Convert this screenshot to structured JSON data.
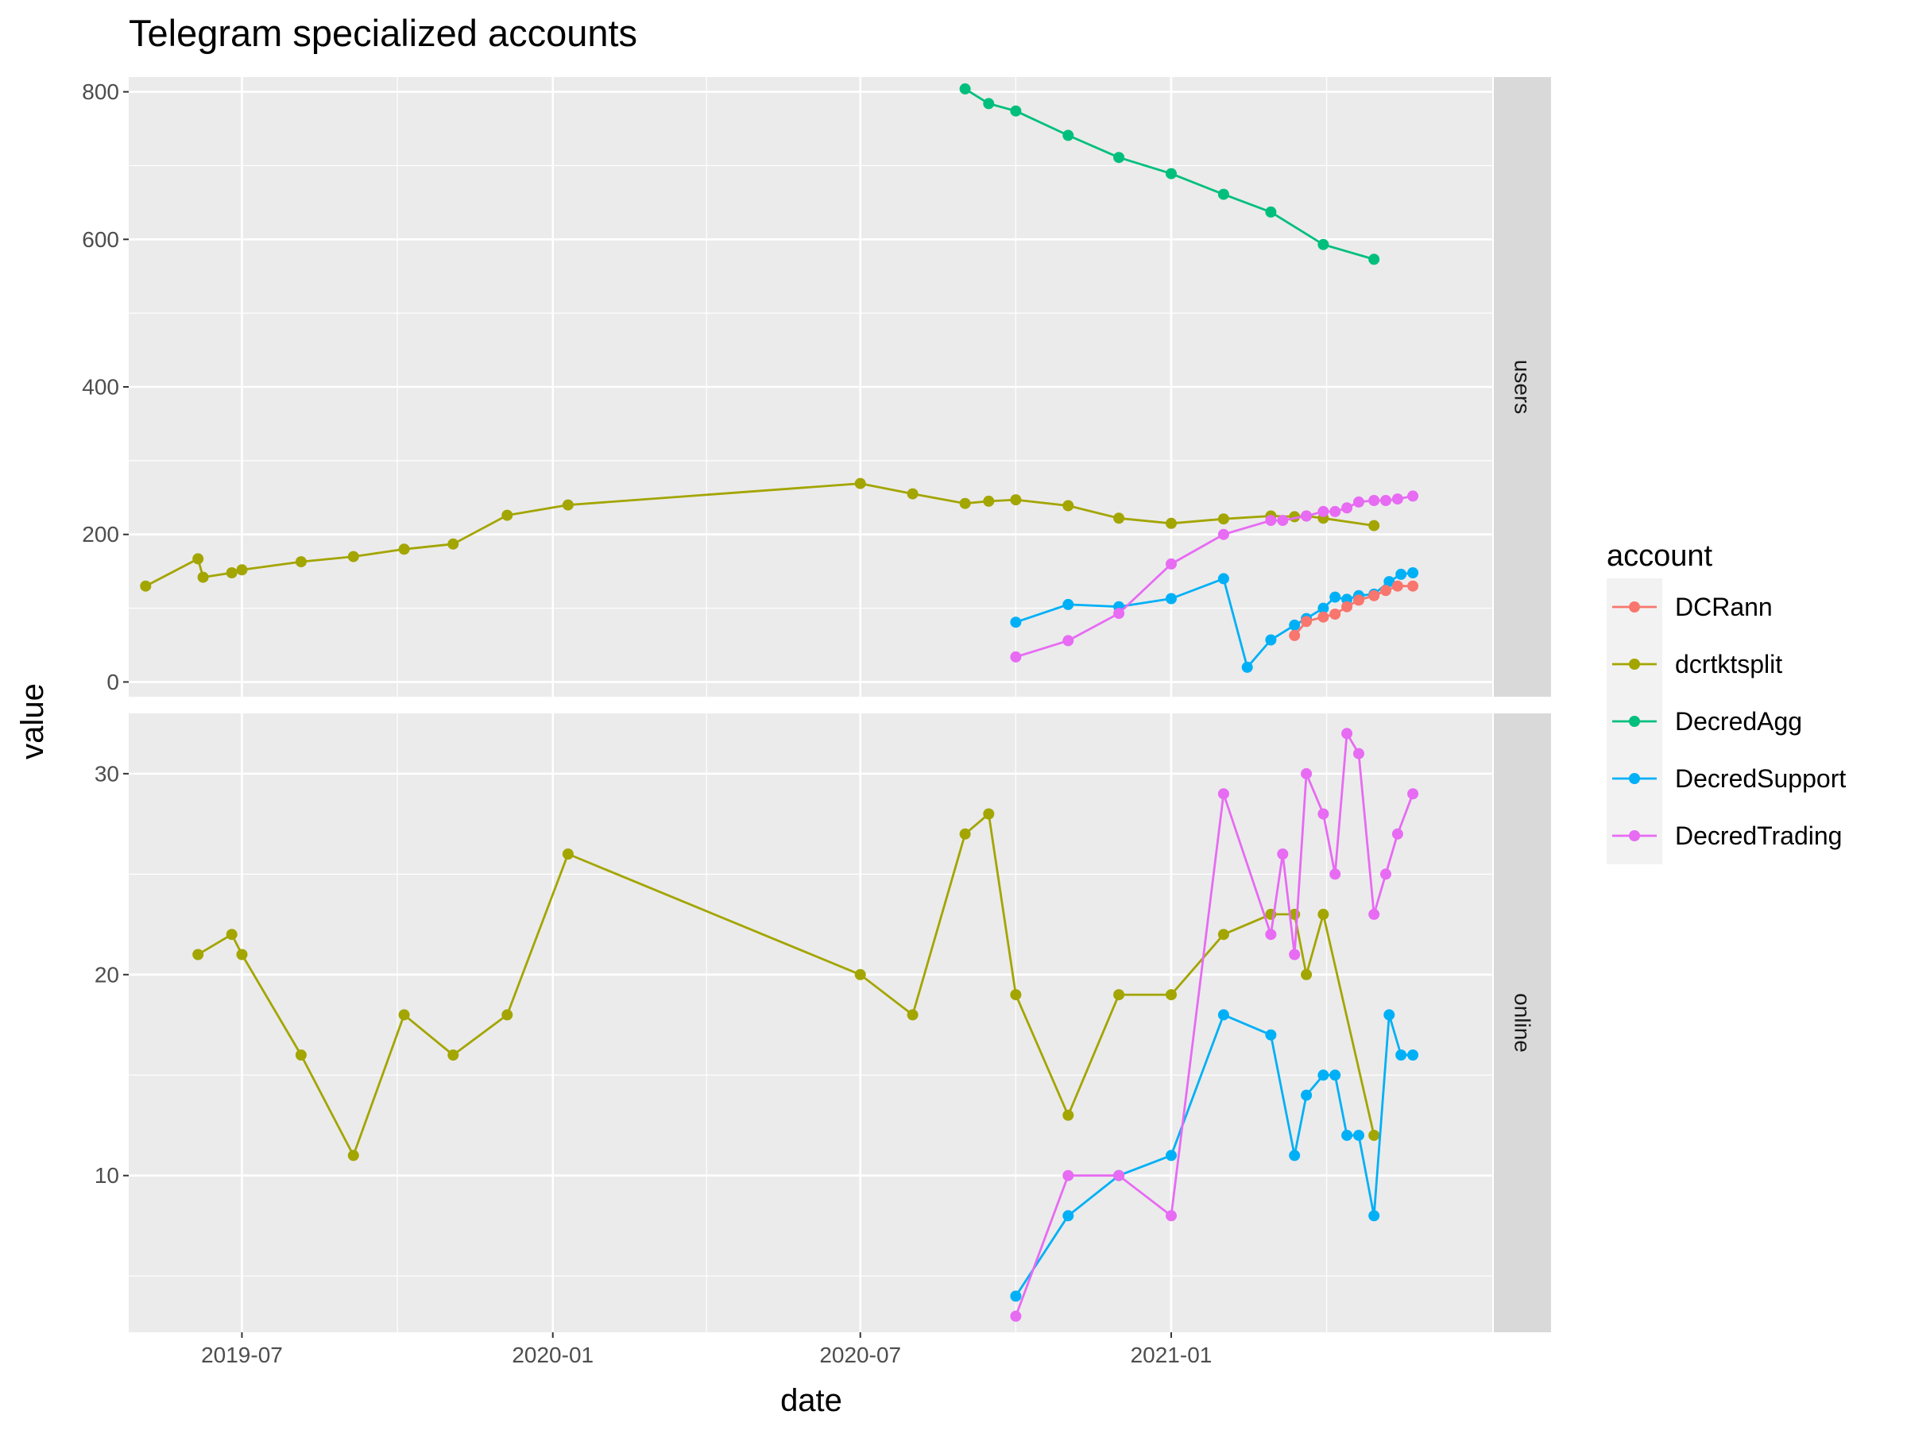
{
  "chart_data": {
    "type": "line",
    "title": "Telegram specialized accounts",
    "xlabel": "date",
    "ylabel": "value",
    "x_ticks": [
      "2019-07",
      "2020-01",
      "2020-07",
      "2021-01"
    ],
    "x_range": [
      "2019-04-25",
      "2021-07-10"
    ],
    "legend": {
      "title": "account",
      "placement": "right",
      "entries": [
        "DCRann",
        "dcrtktsplit",
        "DecredAgg",
        "DecredSupport",
        "DecredTrading"
      ]
    },
    "colors": {
      "DCRann": "#f8766d",
      "dcrtktsplit": "#a3a500",
      "DecredAgg": "#00bf7d",
      "DecredSupport": "#00b0f6",
      "DecredTrading": "#e76bf3"
    },
    "panels": [
      {
        "strip": "users",
        "ylim": [
          -20,
          820
        ],
        "y_ticks": [
          0,
          200,
          400,
          600,
          800
        ],
        "series": [
          {
            "name": "dcrtktsplit",
            "points": [
              [
                "2019-05-05",
                130
              ],
              [
                "2019-06-05",
                167
              ],
              [
                "2019-06-08",
                142
              ],
              [
                "2019-06-25",
                148
              ],
              [
                "2019-07-01",
                152
              ],
              [
                "2019-08-05",
                163
              ],
              [
                "2019-09-05",
                170
              ],
              [
                "2019-10-05",
                180
              ],
              [
                "2019-11-03",
                187
              ],
              [
                "2019-12-05",
                226
              ],
              [
                "2020-01-10",
                240
              ],
              [
                "2020-07-01",
                269
              ],
              [
                "2020-08-01",
                255
              ],
              [
                "2020-09-01",
                242
              ],
              [
                "2020-09-15",
                245
              ],
              [
                "2020-10-01",
                247
              ],
              [
                "2020-11-01",
                239
              ],
              [
                "2020-12-01",
                222
              ],
              [
                "2021-01-01",
                215
              ],
              [
                "2021-02-01",
                221
              ],
              [
                "2021-03-01",
                225
              ],
              [
                "2021-03-15",
                224
              ],
              [
                "2021-03-22",
                225
              ],
              [
                "2021-04-01",
                222
              ],
              [
                "2021-05-01",
                212
              ]
            ]
          },
          {
            "name": "DecredAgg",
            "points": [
              [
                "2020-09-01",
                804
              ],
              [
                "2020-09-15",
                784
              ],
              [
                "2020-10-01",
                774
              ],
              [
                "2020-11-01",
                741
              ],
              [
                "2020-12-01",
                711
              ],
              [
                "2021-01-01",
                689
              ],
              [
                "2021-02-01",
                661
              ],
              [
                "2021-03-01",
                637
              ],
              [
                "2021-04-01",
                593
              ],
              [
                "2021-05-01",
                573
              ]
            ]
          },
          {
            "name": "DecredSupport",
            "points": [
              [
                "2020-10-01",
                81
              ],
              [
                "2020-11-01",
                105
              ],
              [
                "2020-12-01",
                102
              ],
              [
                "2021-01-01",
                113
              ],
              [
                "2021-02-01",
                140
              ],
              [
                "2021-02-15",
                20
              ],
              [
                "2021-03-01",
                57
              ],
              [
                "2021-03-15",
                77
              ],
              [
                "2021-03-22",
                86
              ],
              [
                "2021-04-01",
                100
              ],
              [
                "2021-04-08",
                115
              ],
              [
                "2021-04-15",
                112
              ],
              [
                "2021-04-22",
                117
              ],
              [
                "2021-05-01",
                119
              ],
              [
                "2021-05-10",
                136
              ],
              [
                "2021-05-17",
                146
              ],
              [
                "2021-05-24",
                148
              ]
            ]
          },
          {
            "name": "DecredTrading",
            "points": [
              [
                "2020-10-01",
                34
              ],
              [
                "2020-11-01",
                56
              ],
              [
                "2020-12-01",
                93
              ],
              [
                "2021-01-01",
                160
              ],
              [
                "2021-02-01",
                200
              ],
              [
                "2021-03-01",
                219
              ],
              [
                "2021-03-08",
                219
              ],
              [
                "2021-03-22",
                225
              ],
              [
                "2021-04-01",
                231
              ],
              [
                "2021-04-08",
                231
              ],
              [
                "2021-04-15",
                236
              ],
              [
                "2021-04-22",
                244
              ],
              [
                "2021-05-01",
                246
              ],
              [
                "2021-05-08",
                246
              ],
              [
                "2021-05-15",
                248
              ],
              [
                "2021-05-24",
                252
              ]
            ]
          },
          {
            "name": "DCRann",
            "points": [
              [
                "2021-03-15",
                63
              ],
              [
                "2021-03-22",
                82
              ],
              [
                "2021-04-01",
                88
              ],
              [
                "2021-04-08",
                92
              ],
              [
                "2021-04-15",
                102
              ],
              [
                "2021-04-22",
                111
              ],
              [
                "2021-05-01",
                117
              ],
              [
                "2021-05-08",
                124
              ],
              [
                "2021-05-15",
                130
              ],
              [
                "2021-05-24",
                130
              ]
            ]
          }
        ]
      },
      {
        "strip": "online",
        "ylim": [
          2.2,
          33.0
        ],
        "y_ticks": [
          10,
          20,
          30
        ],
        "series": [
          {
            "name": "dcrtktsplit",
            "points": [
              [
                "2019-06-05",
                21
              ],
              [
                "2019-06-25",
                22
              ],
              [
                "2019-07-01",
                21
              ],
              [
                "2019-08-05",
                16
              ],
              [
                "2019-09-05",
                11
              ],
              [
                "2019-10-05",
                18
              ],
              [
                "2019-11-03",
                16
              ],
              [
                "2019-12-05",
                18
              ],
              [
                "2020-01-10",
                26
              ],
              [
                "2020-07-01",
                20
              ],
              [
                "2020-08-01",
                18
              ],
              [
                "2020-09-01",
                27
              ],
              [
                "2020-09-15",
                28
              ],
              [
                "2020-10-01",
                19
              ],
              [
                "2020-11-01",
                13
              ],
              [
                "2020-12-01",
                19
              ],
              [
                "2021-01-01",
                19
              ],
              [
                "2021-02-01",
                22
              ],
              [
                "2021-03-01",
                23
              ],
              [
                "2021-03-15",
                23
              ],
              [
                "2021-03-22",
                20
              ],
              [
                "2021-04-01",
                23
              ],
              [
                "2021-05-01",
                12
              ]
            ]
          },
          {
            "name": "DecredSupport",
            "points": [
              [
                "2020-10-01",
                4
              ],
              [
                "2020-11-01",
                8
              ],
              [
                "2020-12-01",
                10
              ],
              [
                "2021-01-01",
                11
              ],
              [
                "2021-02-01",
                18
              ],
              [
                "2021-03-01",
                17
              ],
              [
                "2021-03-15",
                11
              ],
              [
                "2021-03-22",
                14
              ],
              [
                "2021-04-01",
                15
              ],
              [
                "2021-04-08",
                15
              ],
              [
                "2021-04-15",
                12
              ],
              [
                "2021-04-22",
                12
              ],
              [
                "2021-05-01",
                8
              ],
              [
                "2021-05-10",
                18
              ],
              [
                "2021-05-17",
                16
              ],
              [
                "2021-05-24",
                16
              ]
            ]
          },
          {
            "name": "DecredTrading",
            "points": [
              [
                "2020-10-01",
                3
              ],
              [
                "2020-11-01",
                10
              ],
              [
                "2020-12-01",
                10
              ],
              [
                "2021-01-01",
                8
              ],
              [
                "2021-02-01",
                29
              ],
              [
                "2021-03-01",
                22
              ],
              [
                "2021-03-08",
                26
              ],
              [
                "2021-03-15",
                21
              ],
              [
                "2021-03-22",
                30
              ],
              [
                "2021-04-01",
                28
              ],
              [
                "2021-04-08",
                25
              ],
              [
                "2021-04-15",
                32
              ],
              [
                "2021-04-22",
                31
              ],
              [
                "2021-05-01",
                23
              ],
              [
                "2021-05-08",
                25
              ],
              [
                "2021-05-15",
                27
              ],
              [
                "2021-05-24",
                29
              ]
            ]
          }
        ]
      }
    ]
  }
}
